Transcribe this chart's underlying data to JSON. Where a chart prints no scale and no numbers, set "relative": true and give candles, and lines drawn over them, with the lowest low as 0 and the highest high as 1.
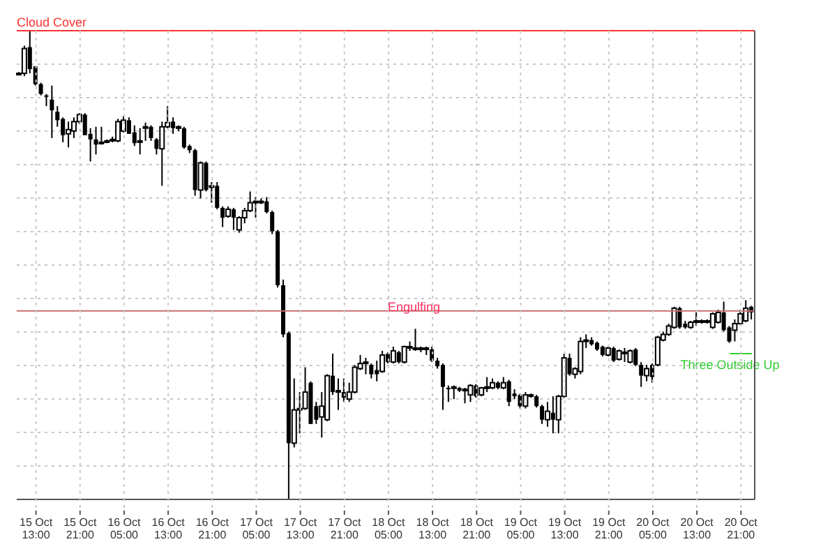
{
  "chart_data": {
    "type": "candlestick",
    "relative": true,
    "color": "#000000",
    "grid": true,
    "categories": [
      null,
      null,
      null,
      "15 Oct 13:00",
      null,
      null,
      null,
      null,
      null,
      null,
      null,
      "15 Oct 21:00",
      null,
      null,
      null,
      null,
      null,
      null,
      null,
      "16 Oct 05:00",
      null,
      null,
      null,
      null,
      null,
      null,
      null,
      "16 Oct 13:00",
      null,
      null,
      null,
      null,
      null,
      null,
      null,
      "16 Oct 21:00",
      null,
      null,
      null,
      null,
      null,
      null,
      null,
      "17 Oct 05:00",
      null,
      null,
      null,
      null,
      null,
      null,
      null,
      "17 Oct 13:00",
      null,
      null,
      null,
      null,
      null,
      null,
      null,
      "17 Oct 21:00",
      null,
      null,
      null,
      null,
      null,
      null,
      null,
      "18 Oct 05:00",
      null,
      null,
      null,
      null,
      null,
      null,
      null,
      "18 Oct 13:00",
      null,
      null,
      null,
      null,
      null,
      null,
      null,
      "18 Oct 21:00",
      null,
      null,
      null,
      null,
      null,
      null,
      null,
      "19 Oct 05:00",
      null,
      null,
      null,
      null,
      null,
      null,
      null,
      "19 Oct 13:00",
      null,
      null,
      null,
      null,
      null,
      null,
      null,
      "19 Oct 21:00",
      null,
      null,
      null,
      null,
      null,
      null,
      null,
      "20 Oct 05:00",
      null,
      null,
      null,
      null,
      null,
      null,
      null,
      "20 Oct 13:00",
      null,
      null,
      null,
      null,
      null,
      null,
      null,
      "20 Oct 21:00",
      null,
      null
    ],
    "ohlc": [
      [
        0.909,
        0.912,
        0.906,
        0.909
      ],
      [
        0.909,
        0.968,
        0.903,
        0.962
      ],
      [
        0.965,
        1,
        0.909,
        0.918
      ],
      [
        0.924,
        0.924,
        0.883,
        0.886
      ],
      [
        0.886,
        0.889,
        0.862,
        0.865
      ],
      [
        0.862,
        0.865,
        0.839,
        0.859
      ],
      [
        0.853,
        0.883,
        0.771,
        0.83
      ],
      [
        0.827,
        0.839,
        0.795,
        0.809
      ],
      [
        0.812,
        0.815,
        0.762,
        0.777
      ],
      [
        0.78,
        0.806,
        0.751,
        0.789
      ],
      [
        0.786,
        0.815,
        0.771,
        0.806
      ],
      [
        0.806,
        0.824,
        0.801,
        0.821
      ],
      [
        0.821,
        0.824,
        0.777,
        0.777
      ],
      [
        0.78,
        0.792,
        0.721,
        0.768
      ],
      [
        0.768,
        0.795,
        0.736,
        0.757
      ],
      [
        0.76,
        0.795,
        0.757,
        0.762
      ],
      [
        0.762,
        0.768,
        0.76,
        0.765
      ],
      [
        0.765,
        0.774,
        0.762,
        0.768
      ],
      [
        0.765,
        0.812,
        0.762,
        0.806
      ],
      [
        0.786,
        0.818,
        0.783,
        0.809
      ],
      [
        0.809,
        0.815,
        0.78,
        0.78
      ],
      [
        0.783,
        0.798,
        0.754,
        0.76
      ],
      [
        0.762,
        0.792,
        0.736,
        0.765
      ],
      [
        0.792,
        0.804,
        0.765,
        0.795
      ],
      [
        0.795,
        0.798,
        0.765,
        0.771
      ],
      [
        0.768,
        0.771,
        0.736,
        0.748
      ],
      [
        0.748,
        0.806,
        0.669,
        0.795
      ],
      [
        0.795,
        0.839,
        0.792,
        0.804
      ],
      [
        0.806,
        0.815,
        0.78,
        0.792
      ],
      [
        0.792,
        0.798,
        0.786,
        0.795
      ],
      [
        0.792,
        0.795,
        0.748,
        0.751
      ],
      [
        0.754,
        0.757,
        0.739,
        0.745
      ],
      [
        0.745,
        0.748,
        0.648,
        0.66
      ],
      [
        0.66,
        0.721,
        0.642,
        0.718
      ],
      [
        0.718,
        0.721,
        0.657,
        0.66
      ],
      [
        0.666,
        0.677,
        0.633,
        0.669
      ],
      [
        0.669,
        0.677,
        0.619,
        0.622
      ],
      [
        0.622,
        0.625,
        0.581,
        0.601
      ],
      [
        0.604,
        0.625,
        0.601,
        0.619
      ],
      [
        0.619,
        0.622,
        0.575,
        0.601
      ],
      [
        0.575,
        0.604,
        0.569,
        0.601
      ],
      [
        0.601,
        0.622,
        0.589,
        0.616
      ],
      [
        0.616,
        0.657,
        0.613,
        0.633
      ],
      [
        0.633,
        0.645,
        0.601,
        0.636
      ],
      [
        0.633,
        0.642,
        0.63,
        0.636
      ],
      [
        0.636,
        0.645,
        0.61,
        0.613
      ],
      [
        0.613,
        0.616,
        0.566,
        0.572
      ],
      [
        0.572,
        0.575,
        0.452,
        0.457
      ],
      [
        0.457,
        0.469,
        0.346,
        0.352
      ],
      [
        0.355,
        0.358,
        0,
        0.12
      ],
      [
        0.12,
        0.258,
        0.111,
        0.191
      ],
      [
        0.191,
        0.229,
        0.141,
        0.194
      ],
      [
        0.194,
        0.282,
        0.191,
        0.229
      ],
      [
        0.249,
        0.252,
        0.161,
        0.161
      ],
      [
        0.199,
        0.208,
        0.161,
        0.17
      ],
      [
        0.176,
        0.229,
        0.132,
        0.199
      ],
      [
        0.17,
        0.267,
        0.167,
        0.264
      ],
      [
        0.264,
        0.311,
        0.223,
        0.229
      ],
      [
        0.229,
        0.258,
        0.191,
        0.232
      ],
      [
        0.229,
        0.258,
        0.208,
        0.217
      ],
      [
        0.214,
        0.249,
        0.208,
        0.229
      ],
      [
        0.229,
        0.287,
        0.226,
        0.282
      ],
      [
        0.279,
        0.308,
        0.276,
        0.29
      ],
      [
        0.29,
        0.302,
        0.267,
        0.293
      ],
      [
        0.287,
        0.29,
        0.258,
        0.267
      ],
      [
        0.276,
        0.296,
        0.252,
        0.267
      ],
      [
        0.273,
        0.317,
        0.27,
        0.308
      ],
      [
        0.311,
        0.314,
        0.29,
        0.293
      ],
      [
        0.293,
        0.326,
        0.29,
        0.317
      ],
      [
        0.314,
        0.317,
        0.29,
        0.293
      ],
      [
        0.293,
        0.328,
        0.29,
        0.326
      ],
      [
        0.323,
        0.337,
        0.317,
        0.326
      ],
      [
        0.32,
        0.364,
        0.317,
        0.323
      ],
      [
        0.32,
        0.326,
        0.314,
        0.323
      ],
      [
        0.32,
        0.326,
        0.308,
        0.323
      ],
      [
        0.32,
        0.326,
        0.293,
        0.296
      ],
      [
        0.296,
        0.302,
        0.279,
        0.284
      ],
      [
        0.287,
        0.29,
        0.191,
        0.24
      ],
      [
        0.238,
        0.243,
        0.208,
        0.235
      ],
      [
        0.238,
        0.243,
        0.214,
        0.24
      ],
      [
        0.238,
        0.24,
        0.229,
        0.232
      ],
      [
        0.232,
        0.238,
        0.205,
        0.235
      ],
      [
        0.223,
        0.246,
        0.208,
        0.243
      ],
      [
        0.243,
        0.246,
        0.217,
        0.22
      ],
      [
        0.223,
        0.24,
        0.22,
        0.238
      ],
      [
        0.238,
        0.261,
        0.229,
        0.24
      ],
      [
        0.238,
        0.258,
        0.235,
        0.249
      ],
      [
        0.249,
        0.252,
        0.235,
        0.238
      ],
      [
        0.238,
        0.261,
        0.235,
        0.249
      ],
      [
        0.252,
        0.255,
        0.199,
        0.208
      ],
      [
        0.226,
        0.235,
        0.214,
        0.22
      ],
      [
        0.223,
        0.226,
        0.194,
        0.199
      ],
      [
        0.199,
        0.229,
        0.194,
        0.223
      ],
      [
        0.22,
        0.226,
        0.217,
        0.223
      ],
      [
        0.22,
        0.223,
        0.196,
        0.199
      ],
      [
        0.199,
        0.202,
        0.161,
        0.17
      ],
      [
        0.17,
        0.208,
        0.155,
        0.188
      ],
      [
        0.185,
        0.22,
        0.141,
        0.17
      ],
      [
        0.17,
        0.223,
        0.141,
        0.22
      ],
      [
        0.22,
        0.311,
        0.217,
        0.302
      ],
      [
        0.302,
        0.311,
        0.264,
        0.267
      ],
      [
        0.267,
        0.282,
        0.258,
        0.279
      ],
      [
        0.273,
        0.346,
        0.267,
        0.337
      ],
      [
        0.337,
        0.352,
        0.323,
        0.34
      ],
      [
        0.34,
        0.346,
        0.328,
        0.331
      ],
      [
        0.334,
        0.337,
        0.317,
        0.32
      ],
      [
        0.326,
        0.328,
        0.305,
        0.308
      ],
      [
        0.308,
        0.326,
        0.305,
        0.323
      ],
      [
        0.323,
        0.326,
        0.293,
        0.296
      ],
      [
        0.299,
        0.32,
        0.296,
        0.317
      ],
      [
        0.311,
        0.323,
        0.293,
        0.314
      ],
      [
        0.293,
        0.32,
        0.29,
        0.317
      ],
      [
        0.32,
        0.323,
        0.284,
        0.287
      ],
      [
        0.287,
        0.293,
        0.24,
        0.264
      ],
      [
        0.264,
        0.287,
        0.252,
        0.279
      ],
      [
        0.287,
        0.29,
        0.249,
        0.261
      ],
      [
        0.287,
        0.349,
        0.284,
        0.346
      ],
      [
        0.34,
        0.358,
        0.337,
        0.352
      ],
      [
        0.352,
        0.375,
        0.349,
        0.37
      ],
      [
        0.367,
        0.411,
        0.364,
        0.408
      ],
      [
        0.408,
        0.411,
        0.364,
        0.367
      ],
      [
        0.375,
        0.381,
        0.364,
        0.367
      ],
      [
        0.367,
        0.381,
        0.364,
        0.378
      ],
      [
        0.378,
        0.399,
        0.37,
        0.381
      ],
      [
        0.378,
        0.384,
        0.375,
        0.381
      ],
      [
        0.378,
        0.384,
        0.375,
        0.381
      ],
      [
        0.367,
        0.399,
        0.364,
        0.396
      ],
      [
        0.378,
        0.405,
        0.375,
        0.399
      ],
      [
        0.399,
        0.422,
        0.358,
        0.361
      ],
      [
        0.367,
        0.37,
        0.334,
        0.337
      ],
      [
        0.361,
        0.384,
        0.337,
        0.375
      ],
      [
        0.375,
        0.405,
        0.372,
        0.396
      ],
      [
        0.381,
        0.425,
        0.378,
        0.408
      ],
      [
        0.411,
        0.413,
        0.384,
        0.399
      ]
    ],
    "ref_lines": [
      {
        "axis": "y",
        "value": 1,
        "label": "Cloud Cover",
        "color": "#ff3030"
      },
      {
        "axis": "y",
        "value": 0.402,
        "color": "#c87070"
      },
      {
        "axis": "y",
        "value": 0.311,
        "label": "Three Outside Up",
        "color": "#33cc33"
      }
    ],
    "annotations": [
      "Engulfing"
    ]
  }
}
